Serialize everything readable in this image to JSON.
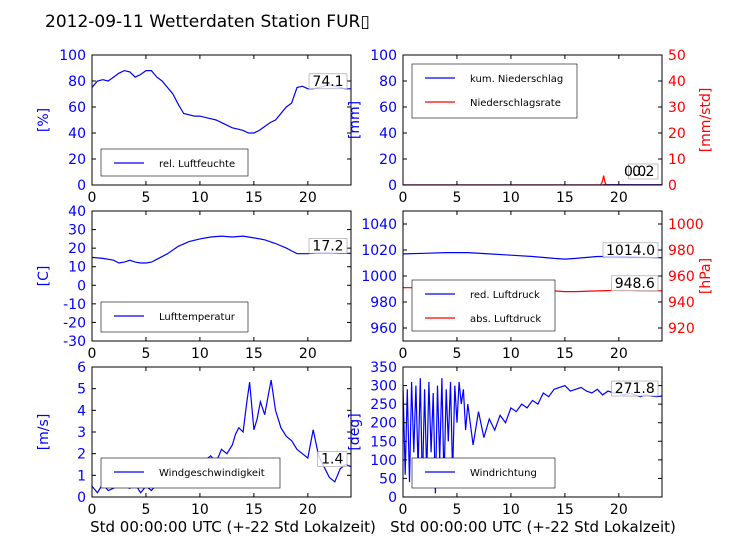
{
  "title": "2012-09-11 Wetterdaten Station FUR▯",
  "xlabel": "Std 00:00:00 UTC (+-22 Std Lokalzeit)",
  "colors": {
    "primary": "#0000ff",
    "secondary": "#ff0000",
    "text": "#000000"
  },
  "chart_data": [
    {
      "type": "line",
      "ylabel": "[%]",
      "xlim": [
        0,
        24
      ],
      "ylim": [
        0,
        100
      ],
      "xticks": [
        0,
        5,
        10,
        15,
        20
      ],
      "yticks": [
        0,
        20,
        40,
        60,
        80,
        100
      ],
      "value_label": "74.1",
      "series": [
        {
          "name": "rel. Luftfeuchte",
          "x": [
            0,
            0.5,
            1,
            1.5,
            2,
            2.5,
            3,
            3.5,
            4,
            4.5,
            5,
            5.5,
            6,
            6.5,
            7,
            7.5,
            8,
            8.5,
            9,
            9.5,
            10,
            10.5,
            11,
            11.5,
            12,
            12.5,
            13,
            13.5,
            14,
            14.5,
            15,
            15.5,
            16,
            16.5,
            17,
            17.5,
            18,
            18.5,
            19,
            19.5,
            20,
            20.5,
            21,
            21.5,
            22,
            22.5,
            23,
            23.5,
            24
          ],
          "y": [
            75,
            80,
            81,
            80,
            83,
            86,
            88,
            87,
            83,
            85,
            88,
            88,
            83,
            80,
            75,
            70,
            62,
            55,
            54,
            53,
            53,
            52,
            51,
            50,
            48,
            46,
            44,
            43,
            42,
            40,
            40,
            42,
            45,
            48,
            50,
            55,
            60,
            63,
            75,
            76,
            74,
            74,
            75,
            76,
            77,
            76,
            75,
            74,
            74
          ]
        }
      ]
    },
    {
      "type": "line",
      "ylabel": "[mm]",
      "ylabel_right": "[mm/std]",
      "xlim": [
        0,
        24
      ],
      "ylim": [
        0,
        100
      ],
      "ylim_right": [
        0,
        50
      ],
      "xticks": [
        0,
        5,
        10,
        15,
        20
      ],
      "yticks": [
        0,
        20,
        40,
        60,
        80,
        100
      ],
      "yticks_right": [
        0,
        10,
        20,
        30,
        40,
        50
      ],
      "value_label": "0.2",
      "value_label_right": "0.0",
      "series": [
        {
          "name": "kum. Niederschlag",
          "axis": "left",
          "x": [
            0,
            18.5,
            18.6,
            24
          ],
          "y": [
            0,
            0,
            0.2,
            0.2
          ]
        },
        {
          "name": "Niederschlagsrate",
          "axis": "right",
          "x": [
            0,
            18.3,
            18.4,
            18.5,
            18.6,
            18.7,
            18.8,
            19.0,
            24
          ],
          "y": [
            0,
            0,
            0.6,
            1.8,
            3.6,
            1.2,
            0.3,
            0,
            0
          ]
        }
      ]
    },
    {
      "type": "line",
      "ylabel": "[C]",
      "xlim": [
        0,
        24
      ],
      "ylim": [
        -30,
        40
      ],
      "xticks": [
        0,
        5,
        10,
        15,
        20
      ],
      "yticks": [
        -30,
        -20,
        -10,
        0,
        10,
        20,
        30,
        40
      ],
      "value_label": "17.2",
      "series": [
        {
          "name": "Lufttemperatur",
          "x": [
            0,
            1,
            2,
            2.5,
            3,
            3.5,
            4,
            4.5,
            5,
            5.5,
            6,
            7,
            8,
            9,
            10,
            11,
            12,
            13,
            14,
            14.5,
            15,
            16,
            17,
            18,
            18.5,
            19,
            20,
            21,
            22,
            23,
            24
          ],
          "y": [
            15,
            14.5,
            13.5,
            12,
            12.5,
            13.5,
            12.5,
            12,
            12,
            12.5,
            14,
            17,
            21,
            23.5,
            25,
            26,
            26.5,
            26,
            26.5,
            26,
            25.5,
            24.5,
            22.5,
            20,
            18.5,
            17,
            17,
            17.5,
            17.5,
            17.2,
            17.2
          ]
        }
      ]
    },
    {
      "type": "line",
      "ylabel_right": "[hPa]",
      "xlim": [
        0,
        24
      ],
      "ylim": [
        950,
        1050
      ],
      "ylim_right": [
        910,
        1010
      ],
      "xticks": [
        0,
        5,
        10,
        15,
        20
      ],
      "yticks": [
        960,
        980,
        1000,
        1020,
        1040
      ],
      "yticks_right": [
        920,
        940,
        960,
        980,
        1000
      ],
      "value_label": "1014.0",
      "value_label_right": "948.6",
      "series": [
        {
          "name": "red. Luftdruck",
          "axis": "left",
          "x": [
            0,
            2,
            4,
            6,
            8,
            10,
            12,
            14,
            15,
            16,
            18,
            20,
            22,
            24
          ],
          "y": [
            1017,
            1017.5,
            1018,
            1018,
            1017,
            1016,
            1015,
            1013.5,
            1013,
            1013.5,
            1015,
            1015,
            1014.5,
            1014
          ]
        },
        {
          "name": "abs. Luftdruck",
          "axis": "right",
          "x": [
            0,
            2,
            4,
            6,
            8,
            10,
            12,
            14,
            15,
            16,
            18,
            20,
            22,
            24
          ],
          "y": [
            951,
            951,
            951.5,
            951.5,
            951,
            950,
            949.5,
            948.5,
            948,
            948,
            948.5,
            949,
            948.8,
            948.6
          ]
        }
      ]
    },
    {
      "type": "line",
      "ylabel": "[m/s]",
      "xlim": [
        0,
        24
      ],
      "ylim": [
        0,
        6
      ],
      "xticks": [
        0,
        5,
        10,
        15,
        20
      ],
      "yticks": [
        0,
        1,
        2,
        3,
        4,
        5,
        6
      ],
      "value_label": "1.4",
      "series": [
        {
          "name": "Windgeschwindigkeit",
          "x": [
            0,
            0.5,
            1,
            1.5,
            2,
            2.5,
            3,
            3.5,
            4,
            4.5,
            5,
            5.5,
            6,
            6.5,
            7,
            7.5,
            8,
            8.5,
            9,
            9.5,
            10,
            10.5,
            11,
            11.5,
            12,
            12.5,
            13,
            13.3,
            13.6,
            14,
            14.3,
            14.6,
            15,
            15.3,
            15.6,
            16,
            16.3,
            16.6,
            17,
            17.5,
            18,
            18.5,
            19,
            19.5,
            20,
            20.5,
            21,
            21.5,
            22,
            22.5,
            23,
            23.5,
            24
          ],
          "y": [
            0.5,
            0.2,
            0.6,
            0.3,
            0.4,
            0.7,
            0.5,
            0.4,
            0.6,
            0.2,
            0.5,
            0.3,
            0.6,
            0.5,
            0.9,
            1.0,
            1.3,
            1.1,
            1.6,
            1.3,
            1.5,
            1.7,
            1.9,
            1.6,
            2.2,
            2.0,
            2.4,
            2.9,
            3.2,
            3.0,
            4.2,
            5.3,
            3.1,
            3.6,
            4.4,
            3.8,
            4.6,
            5.4,
            4.0,
            3.2,
            2.8,
            2.6,
            2.2,
            2.0,
            1.8,
            3.1,
            1.9,
            1.4,
            0.9,
            0.7,
            1.3,
            1.5,
            1.4
          ]
        }
      ]
    },
    {
      "type": "line",
      "ylabel": "[deg]",
      "xlim": [
        0,
        24
      ],
      "ylim": [
        0,
        350
      ],
      "xticks": [
        0,
        5,
        10,
        15,
        20
      ],
      "yticks": [
        0,
        50,
        100,
        150,
        200,
        250,
        300,
        350
      ],
      "value_label": "271.8",
      "series": [
        {
          "name": "Windrichtung",
          "x": [
            0,
            0.2,
            0.4,
            0.6,
            0.8,
            1.0,
            1.2,
            1.4,
            1.6,
            1.8,
            2.0,
            2.2,
            2.4,
            2.6,
            2.8,
            3.0,
            3.2,
            3.4,
            3.6,
            3.8,
            4.0,
            4.2,
            4.4,
            4.6,
            4.8,
            5.0,
            5.2,
            5.4,
            5.6,
            5.8,
            6.0,
            6.5,
            7,
            7.5,
            8,
            8.5,
            9,
            9.5,
            10,
            10.5,
            11,
            11.5,
            12,
            12.5,
            13,
            13.5,
            14,
            14.5,
            15,
            15.5,
            16,
            16.5,
            17,
            17.5,
            18,
            18.5,
            19,
            19.5,
            20,
            20.5,
            21,
            21.5,
            22,
            22.5,
            23,
            23.5,
            24
          ],
          "y": [
            300,
            60,
            290,
            40,
            310,
            120,
            300,
            80,
            320,
            30,
            290,
            60,
            310,
            120,
            280,
            10,
            300,
            100,
            320,
            40,
            290,
            150,
            310,
            60,
            300,
            200,
            310,
            250,
            290,
            180,
            250,
            140,
            230,
            160,
            210,
            180,
            220,
            200,
            240,
            230,
            250,
            240,
            260,
            250,
            280,
            270,
            290,
            295,
            300,
            285,
            290,
            295,
            285,
            280,
            290,
            275,
            285,
            280,
            280,
            275,
            280,
            275,
            270,
            275,
            272,
            270,
            271.8
          ]
        }
      ]
    }
  ]
}
